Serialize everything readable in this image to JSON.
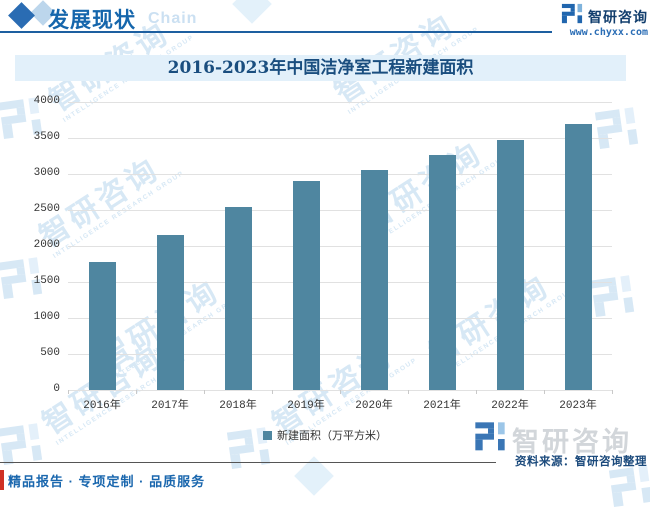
{
  "header": {
    "title": "发展现状",
    "watermark_word": "Chain",
    "brand_name": "智研咨询",
    "brand_url": "www.chyxx.com"
  },
  "chart_data": {
    "type": "bar",
    "title": "2016-2023年中国洁净室工程新建面积",
    "categories": [
      "2016年",
      "2017年",
      "2018年",
      "2019年",
      "2020年",
      "2021年",
      "2022年",
      "2023年"
    ],
    "values": [
      1780,
      2150,
      2540,
      2900,
      3050,
      3270,
      3470,
      3700
    ],
    "series_name": "新建面积",
    "unit": "万平方米",
    "legend_label": "新建面积（万平方米）",
    "ylim": [
      0,
      4000
    ],
    "yticks": [
      0,
      500,
      1000,
      1500,
      2000,
      2500,
      3000,
      3500,
      4000
    ],
    "grid": true,
    "legend_position": "bottom",
    "bar_color": "#4f86a0"
  },
  "watermark": {
    "text": "智研咨询",
    "subtext": "INTELLIGENCE RESEARCH GROUP"
  },
  "footer": {
    "brand_watermark": "智研咨询",
    "source_label": "资料来源：智研咨询整理",
    "services_label": "精品报告 · 专项定制 · 品质服务"
  },
  "colors": {
    "bar": "#4f86a0",
    "accent_blue": "#1566ac",
    "title_text": "#1a4e7f",
    "band_bg": "#e2f0fa",
    "red": "#cf3124"
  }
}
